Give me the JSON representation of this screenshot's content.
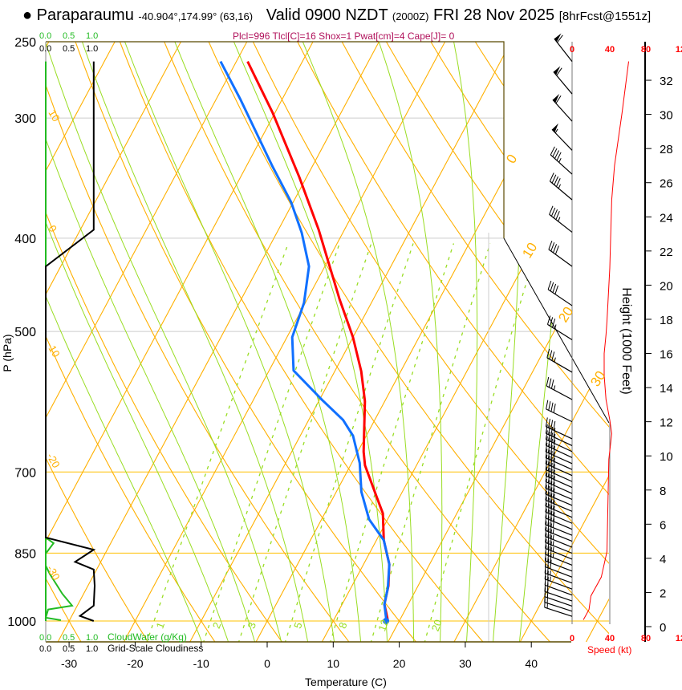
{
  "header": {
    "bullet": "●",
    "station": "Paraparaumu",
    "coords": "-40.904°,174.99° (63,16)",
    "valid": "Valid 0900 NZDT",
    "utc": "(2000Z)",
    "date": "FRI 28 Nov 2025",
    "forecast": "[8hrFcst@1551z]",
    "indices": "Plcl=996 Tlcl[C]=16 Shox=1 Pwat[cm]=4 Cape[J]= 0"
  },
  "colors": {
    "temperature": "#ff0000",
    "dewpoint": "#1070ff",
    "isotherm": "#ffb000",
    "moist_adiabat": "#99dd22",
    "mixing_ratio": "#99dd22",
    "cloud_water": "#22bb22",
    "cloudiness": "#000000",
    "speed": "#ff0000",
    "indices": "#b0105a"
  },
  "chart_data": {
    "type": "line",
    "subtype": "skew-T log-P",
    "title": "Paraparaumu Valid 0900 NZDT FRI 28 Nov 2025",
    "xlabel": "Temperature (C)",
    "ylabel": "P (hPa)",
    "y2label": "Height (1000 Feet)",
    "speed_label": "Speed (kt)",
    "cloud_water_label": "CloudWater (g/Kg)",
    "cloudiness_label": "Grid-Scale Cloudiness",
    "xlim": [
      -33.5,
      46
    ],
    "ylim": [
      1051,
      250
    ],
    "x_ticks": [
      -30,
      -20,
      -10,
      0,
      10,
      20,
      30,
      40
    ],
    "p_ticks": [
      250,
      300,
      400,
      500,
      700,
      850,
      1000
    ],
    "height_ticks": [
      0,
      2,
      4,
      6,
      8,
      10,
      12,
      14,
      16,
      18,
      20,
      22,
      24,
      26,
      28,
      30,
      32
    ],
    "speed_ticks": [
      "0",
      "40",
      "80",
      "12"
    ],
    "fraction_ticks": [
      "0.0",
      "0.5",
      "1.0"
    ],
    "isotherm_labels": [
      "0",
      "10",
      "20",
      "30"
    ],
    "dry_adiabat_labels": [
      "10",
      "0",
      "-10",
      "-20",
      "-30"
    ],
    "mixing_ratio_labels": [
      "1",
      "2",
      "3",
      "5",
      "8",
      "12",
      "20"
    ],
    "mixing_ratios": [
      1,
      2,
      3,
      5,
      8,
      12,
      20
    ],
    "series": [
      {
        "name": "Temperature",
        "p": [
          262,
          296,
          345,
          392,
          426,
          463,
          507,
          550,
          591,
          667,
          689,
          744,
          773,
          824,
          873,
          919,
          961,
          996
        ],
        "t": [
          -48.3,
          -40.4,
          -31.2,
          -23.9,
          -19.5,
          -15.1,
          -10.0,
          -6.0,
          -3.0,
          0.9,
          2.2,
          6.6,
          8.8,
          11.1,
          13.9,
          15.5,
          16.4,
          18.1
        ]
      },
      {
        "name": "Dewpoint",
        "p": [
          262,
          287,
          337,
          367,
          395,
          428,
          467,
          507,
          549,
          589,
          618,
          642,
          685,
          734,
          784,
          824,
          873,
          924,
          961,
          996
        ],
        "t": [
          -52.4,
          -46.3,
          -36.0,
          -30.3,
          -26.2,
          -22.4,
          -20.2,
          -19.2,
          -16.3,
          -9.6,
          -4.8,
          -2.0,
          1.2,
          3.8,
          7.2,
          11.1,
          13.9,
          15.6,
          16.4,
          17.9
        ]
      }
    ],
    "wind_speed_profile": {
      "height_kft": [
        0.4,
        1.0,
        1.8,
        2.9,
        4.4,
        7.0,
        9.8,
        11.3,
        12.1,
        13.3,
        14.7,
        16.0,
        17.1,
        17.9,
        21.0,
        25.0,
        27.0,
        30.1,
        33.1
      ],
      "speed_kt": [
        12,
        18,
        20,
        31,
        37,
        38,
        39,
        42,
        40,
        36,
        34,
        34,
        36,
        37,
        40,
        42,
        45,
        53,
        60
      ]
    },
    "wind_barbs": [
      [
        33.1,
        322,
        60
      ],
      [
        31.2,
        320,
        60
      ],
      [
        29.6,
        318,
        58
      ],
      [
        27.9,
        316,
        55
      ],
      [
        26.5,
        312,
        47
      ],
      [
        25.0,
        310,
        45
      ],
      [
        23.1,
        308,
        45
      ],
      [
        21.1,
        306,
        42
      ],
      [
        18.8,
        304,
        38
      ],
      [
        16.8,
        302,
        36
      ],
      [
        14.9,
        300,
        35
      ],
      [
        13.3,
        298,
        36
      ],
      [
        12.0,
        296,
        40
      ],
      [
        11.0,
        295,
        42
      ],
      [
        10.6,
        295,
        41
      ],
      [
        10.25,
        295,
        40
      ],
      [
        9.9,
        295,
        40
      ],
      [
        9.55,
        294,
        39
      ],
      [
        9.2,
        294,
        39
      ],
      [
        8.85,
        294,
        39
      ],
      [
        8.5,
        294,
        38
      ],
      [
        8.15,
        294,
        38
      ],
      [
        7.8,
        294,
        38
      ],
      [
        7.45,
        293,
        38
      ],
      [
        7.1,
        293,
        38
      ],
      [
        6.75,
        293,
        38
      ],
      [
        6.4,
        293,
        38
      ],
      [
        6.05,
        293,
        38
      ],
      [
        5.7,
        293,
        38
      ],
      [
        5.35,
        292,
        38
      ],
      [
        5.0,
        292,
        37
      ],
      [
        4.65,
        292,
        37
      ],
      [
        4.3,
        292,
        37
      ],
      [
        3.95,
        292,
        35
      ],
      [
        3.6,
        292,
        33
      ],
      [
        3.25,
        291,
        31
      ],
      [
        2.9,
        291,
        30
      ],
      [
        2.55,
        290,
        26
      ],
      [
        2.2,
        290,
        23
      ],
      [
        1.85,
        290,
        21
      ],
      [
        1.5,
        289,
        20
      ],
      [
        1.2,
        289,
        20
      ],
      [
        0.9,
        288,
        19
      ],
      [
        0.6,
        288,
        15
      ]
    ],
    "cloudiness": {
      "p": [
        262,
        392,
        428,
        819,
        843,
        868,
        884,
        919,
        964,
        988,
        1000
      ],
      "value": [
        0.98,
        0.98,
        0.0,
        0.0,
        0.98,
        0.6,
        0.98,
        1.0,
        0.98,
        0.7,
        0.98
      ]
    },
    "cloud_water": {
      "p": [
        262,
        819,
        830,
        851,
        876,
        893,
        937,
        964,
        973,
        992,
        998
      ],
      "value": [
        0,
        0,
        0.16,
        0,
        0,
        0.08,
        0.34,
        0.54,
        0.05,
        0,
        0.31
      ]
    }
  }
}
